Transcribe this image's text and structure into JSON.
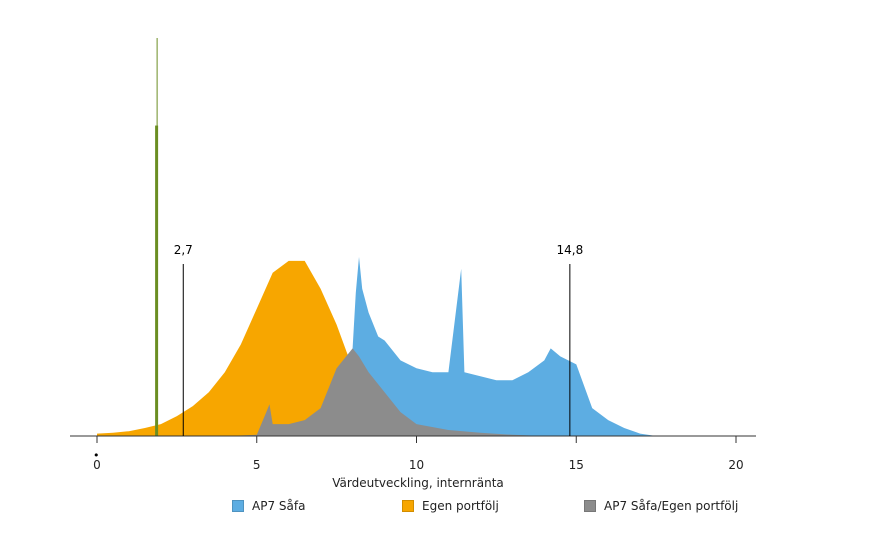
{
  "chart_data": {
    "type": "area",
    "title": "",
    "xlabel": "Värdeutveckling, internränta",
    "ylabel": "",
    "xlim": [
      -1.2,
      20.6
    ],
    "ylim": [
      0,
      1.0
    ],
    "xticks": [
      0,
      5,
      10,
      15,
      20
    ],
    "grid": false,
    "legend_position": "bottom",
    "series": [
      {
        "name": "AP7 Såfa",
        "color": "#5dade2",
        "x": [
          1.8,
          2.0,
          4.0,
          5.0,
          5.5,
          6.0,
          6.5,
          7.0,
          7.5,
          7.8,
          8.0,
          8.1,
          8.2,
          8.3,
          8.5,
          8.8,
          9.0,
          9.5,
          10.0,
          10.5,
          11.0,
          11.4,
          11.5,
          12.0,
          12.5,
          13.0,
          13.5,
          14.0,
          14.2,
          14.5,
          15.0,
          15.5,
          16.0,
          16.5,
          17.0,
          17.5
        ],
        "y": [
          0.0,
          0.0,
          0.0,
          0.0,
          0.0,
          0.0,
          0.0,
          0.0,
          0.0,
          0.0,
          0.22,
          0.36,
          0.45,
          0.37,
          0.31,
          0.25,
          0.24,
          0.19,
          0.17,
          0.16,
          0.16,
          0.42,
          0.16,
          0.15,
          0.14,
          0.14,
          0.16,
          0.19,
          0.22,
          0.2,
          0.18,
          0.07,
          0.04,
          0.02,
          0.006,
          0.0
        ]
      },
      {
        "name": "Egen portfölj",
        "color": "#f7a600",
        "x": [
          0.0,
          0.5,
          1.0,
          1.5,
          2.0,
          2.5,
          3.0,
          3.5,
          4.0,
          4.5,
          5.0,
          5.5,
          6.0,
          6.5,
          7.0,
          7.5,
          8.0,
          8.5,
          9.0,
          9.5
        ],
        "y": [
          0.006,
          0.008,
          0.012,
          0.02,
          0.03,
          0.05,
          0.075,
          0.11,
          0.16,
          0.23,
          0.32,
          0.41,
          0.44,
          0.44,
          0.37,
          0.28,
          0.17,
          0.08,
          0.03,
          0.0
        ]
      },
      {
        "name": "AP7 Såfa/Egen portfölj",
        "color": "#8c8c8c",
        "x": [
          1.8,
          2.0,
          4.0,
          5.0,
          5.3,
          5.4,
          5.5,
          6.0,
          6.5,
          7.0,
          7.5,
          8.0,
          8.2,
          8.5,
          9.0,
          9.5,
          10.0,
          11.0,
          12.0,
          13.0,
          14.0
        ],
        "y": [
          0.0,
          0.0,
          0.0,
          0.003,
          0.06,
          0.08,
          0.03,
          0.03,
          0.04,
          0.07,
          0.17,
          0.22,
          0.2,
          0.16,
          0.11,
          0.06,
          0.03,
          0.015,
          0.008,
          0.003,
          0.0
        ]
      }
    ],
    "spike": {
      "x": 1.85,
      "y": 1.0,
      "y_inner": 0.78,
      "color": "#6b8e23"
    },
    "reference_lines": [
      {
        "x": 2.7,
        "label": "2,7"
      },
      {
        "x": 14.8,
        "label": "14,8"
      }
    ],
    "marker_note": "•"
  }
}
